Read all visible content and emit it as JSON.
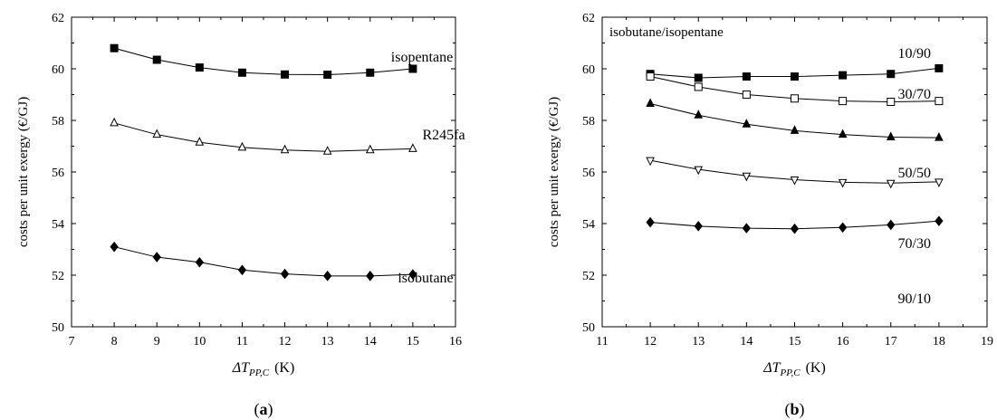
{
  "chart_data": [
    {
      "type": "line",
      "panel_label": "(a)",
      "xlabel": "ΔT",
      "xlabel_sub": "PP,C",
      "xlabel_unit": "(K)",
      "ylabel": "costs per unit exergy (€/GJ)",
      "xlim": [
        7,
        16
      ],
      "ylim": [
        50,
        62
      ],
      "xticks": [
        7,
        8,
        9,
        10,
        11,
        12,
        13,
        14,
        15,
        16
      ],
      "yticks": [
        50,
        52,
        54,
        56,
        58,
        60,
        62
      ],
      "x": [
        8,
        9,
        10,
        11,
        12,
        13,
        14,
        15
      ],
      "series": [
        {
          "name": "isopentane",
          "marker": "square-filled",
          "values": [
            60.8,
            60.35,
            60.05,
            59.85,
            59.78,
            59.77,
            59.85,
            60.0
          ]
        },
        {
          "name": "R245fa",
          "marker": "triangle-up-open",
          "values": [
            57.9,
            57.45,
            57.15,
            56.95,
            56.85,
            56.8,
            56.85,
            56.9
          ]
        },
        {
          "name": "isobutane",
          "marker": "diamond-filled",
          "values": [
            53.1,
            52.7,
            52.5,
            52.2,
            52.05,
            51.97,
            51.97,
            52.03
          ]
        }
      ]
    },
    {
      "type": "line",
      "panel_label": "(b)",
      "title": "isobutane/isopentane",
      "xlabel": "ΔT",
      "xlabel_sub": "PP,C",
      "xlabel_unit": "(K)",
      "ylabel": "costs per unit exergy (€/GJ)",
      "xlim": [
        11,
        19
      ],
      "ylim": [
        50,
        62
      ],
      "xticks": [
        11,
        12,
        13,
        14,
        15,
        16,
        17,
        18,
        19
      ],
      "yticks": [
        50,
        52,
        54,
        56,
        58,
        60,
        62
      ],
      "x": [
        12,
        13,
        14,
        15,
        16,
        17,
        18
      ],
      "series": [
        {
          "name": "10/90",
          "marker": "square-filled",
          "values": [
            59.8,
            59.65,
            59.7,
            59.7,
            59.75,
            59.8,
            60.02
          ]
        },
        {
          "name": "30/70",
          "marker": "square-open",
          "values": [
            59.7,
            59.3,
            59.0,
            58.85,
            58.75,
            58.72,
            58.75
          ]
        },
        {
          "name": "50/50",
          "marker": "triangle-up-filled",
          "values": [
            58.65,
            58.2,
            57.85,
            57.6,
            57.45,
            57.35,
            57.33
          ]
        },
        {
          "name": "70/30",
          "marker": "triangle-down-open",
          "values": [
            56.45,
            56.1,
            55.85,
            55.7,
            55.6,
            55.57,
            55.62
          ]
        },
        {
          "name": "90/10",
          "marker": "diamond-filled",
          "values": [
            54.05,
            53.9,
            53.82,
            53.8,
            53.85,
            53.95,
            54.1
          ]
        }
      ]
    }
  ]
}
